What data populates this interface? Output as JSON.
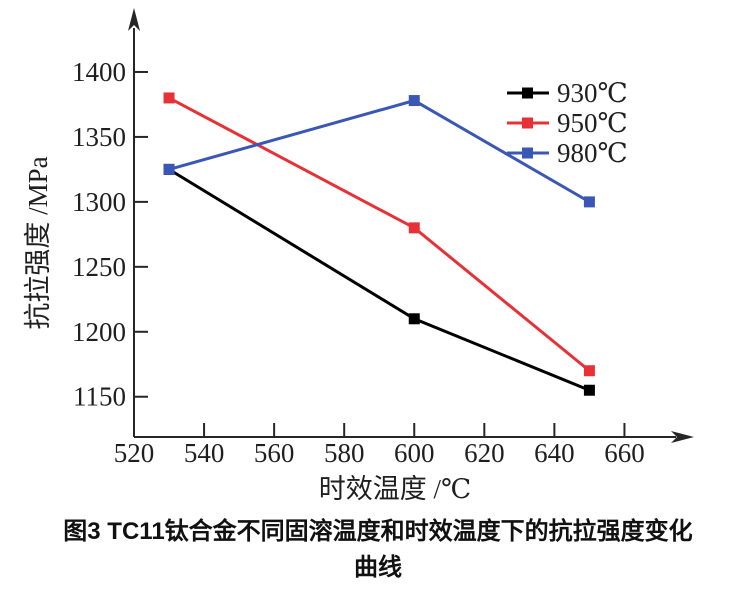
{
  "figure": {
    "caption_line1": "图3  TC11钛合金不同固溶温度和时效温度下的抗拉强度变化",
    "caption_line2": "曲线"
  },
  "chart_data": {
    "type": "line",
    "title": "",
    "xlabel": "时效温度 /℃",
    "ylabel": "抗拉强度 /MPa",
    "x": [
      530,
      600,
      650
    ],
    "series": [
      {
        "name": "930℃",
        "color": "#000000",
        "values": [
          1325,
          1210,
          1155
        ]
      },
      {
        "name": "950℃",
        "color": "#e73137",
        "values": [
          1380,
          1280,
          1170
        ]
      },
      {
        "name": "980℃",
        "color": "#3b57b5",
        "values": [
          1325,
          1378,
          1300
        ]
      }
    ],
    "marker": "square",
    "xticks": [
      520,
      540,
      560,
      580,
      600,
      620,
      640,
      660
    ],
    "yticks": [
      1150,
      1200,
      1250,
      1300,
      1350,
      1400
    ],
    "xlim": [
      520,
      677
    ],
    "ylim": [
      1119,
      1430
    ],
    "grid": false,
    "legend_position": "upper-right",
    "axis_color": "#262626",
    "text_color": "#1f1f1f"
  }
}
